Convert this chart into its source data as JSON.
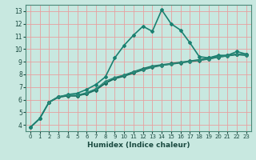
{
  "title": "",
  "xlabel": "Humidex (Indice chaleur)",
  "ylabel": "",
  "xlim": [
    -0.5,
    23.5
  ],
  "ylim": [
    3.5,
    13.5
  ],
  "xticks": [
    0,
    1,
    2,
    3,
    4,
    5,
    6,
    7,
    8,
    9,
    10,
    11,
    12,
    13,
    14,
    15,
    16,
    17,
    18,
    19,
    20,
    21,
    22,
    23
  ],
  "yticks": [
    4,
    5,
    6,
    7,
    8,
    9,
    10,
    11,
    12,
    13
  ],
  "background_color": "#c8e8e0",
  "grid_color": "#e8a0a0",
  "line_color_main": "#1a6e60",
  "lines": [
    {
      "x": [
        0,
        1,
        2,
        3,
        4,
        5,
        6,
        7,
        8,
        9,
        10,
        11,
        12,
        13,
        14,
        15,
        16,
        17,
        18,
        19,
        20,
        21,
        22,
        23
      ],
      "y": [
        3.8,
        4.5,
        5.8,
        6.2,
        6.3,
        6.3,
        6.5,
        6.8,
        7.3,
        7.7,
        7.9,
        8.2,
        8.45,
        8.65,
        8.75,
        8.85,
        8.95,
        9.05,
        9.15,
        9.3,
        9.4,
        9.5,
        9.6,
        9.55
      ],
      "color": "#1a6e60",
      "lw": 1.2,
      "marker": "D",
      "ms": 2.0
    },
    {
      "x": [
        0,
        1,
        2,
        3,
        4,
        5,
        6,
        7,
        8,
        9,
        10,
        11,
        12,
        13,
        14,
        15,
        16,
        17,
        18,
        19,
        20,
        21,
        22,
        23
      ],
      "y": [
        3.8,
        4.5,
        5.8,
        6.2,
        6.4,
        6.5,
        6.8,
        7.2,
        7.8,
        9.3,
        10.3,
        11.1,
        11.8,
        11.4,
        13.1,
        12.0,
        11.5,
        10.5,
        9.4,
        9.3,
        9.5,
        9.5,
        9.8,
        9.6
      ],
      "color": "#1a8070",
      "lw": 1.2,
      "marker": "D",
      "ms": 2.0
    },
    {
      "x": [
        2,
        3,
        4,
        5,
        6,
        7,
        8,
        9,
        10,
        11,
        12,
        13,
        14,
        15,
        16,
        17,
        18,
        19,
        20,
        21,
        22,
        23
      ],
      "y": [
        5.8,
        6.2,
        6.3,
        6.3,
        6.45,
        6.75,
        7.3,
        7.65,
        7.85,
        8.1,
        8.35,
        8.55,
        8.7,
        8.8,
        8.9,
        9.0,
        9.1,
        9.2,
        9.35,
        9.45,
        9.55,
        9.5
      ],
      "color": "#1a6e60",
      "lw": 1.0,
      "marker": "D",
      "ms": 2.0
    },
    {
      "x": [
        2,
        3,
        4,
        5,
        6,
        7,
        8,
        9,
        10,
        11,
        12,
        13,
        14,
        15,
        16,
        17,
        18,
        19,
        20,
        21,
        22,
        23
      ],
      "y": [
        5.8,
        6.25,
        6.35,
        6.35,
        6.55,
        6.85,
        7.45,
        7.75,
        7.95,
        8.2,
        8.4,
        8.6,
        8.72,
        8.82,
        8.92,
        9.02,
        9.12,
        9.22,
        9.37,
        9.47,
        9.57,
        9.52
      ],
      "color": "#2a8878",
      "lw": 1.0,
      "marker": "D",
      "ms": 1.8
    }
  ]
}
